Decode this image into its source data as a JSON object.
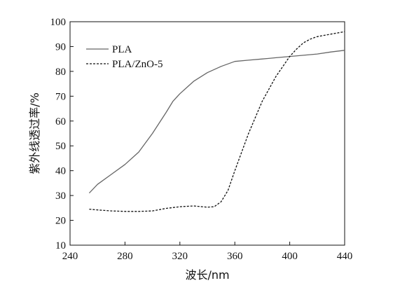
{
  "chart_data": {
    "type": "line",
    "xlabel": "波长/nm",
    "ylabel": "紫外线透过率/%",
    "xlim": [
      240,
      440
    ],
    "ylim": [
      10,
      100
    ],
    "xticks": [
      240,
      280,
      320,
      360,
      400,
      440
    ],
    "yticks": [
      10,
      20,
      30,
      40,
      50,
      60,
      70,
      80,
      90,
      100
    ],
    "grid": false,
    "legend_position": "top-left",
    "series": [
      {
        "name": "PLA",
        "style": "solid",
        "color": "#666666",
        "x": [
          254,
          260,
          270,
          280,
          290,
          300,
          310,
          315,
          320,
          330,
          340,
          350,
          360,
          370,
          380,
          390,
          400,
          410,
          420,
          430,
          440
        ],
        "y": [
          31,
          34.5,
          38.5,
          42.5,
          47.5,
          55,
          63.5,
          68,
          71,
          76,
          79.5,
          82,
          84,
          84.5,
          85,
          85.5,
          86,
          86.5,
          87,
          87.8,
          88.5
        ]
      },
      {
        "name": "PLA/ZnO-5",
        "style": "dashed",
        "color": "#111111",
        "x": [
          254,
          260,
          270,
          280,
          290,
          300,
          310,
          320,
          330,
          340,
          345,
          350,
          355,
          360,
          370,
          380,
          390,
          395,
          400,
          405,
          410,
          415,
          420,
          430,
          440
        ],
        "y": [
          24.5,
          24.2,
          23.8,
          23.6,
          23.6,
          23.8,
          24.8,
          25.5,
          25.8,
          25.3,
          25.5,
          27.5,
          32,
          40,
          55,
          68,
          78,
          82,
          86,
          89,
          91.5,
          93,
          94,
          95,
          96
        ]
      }
    ]
  }
}
